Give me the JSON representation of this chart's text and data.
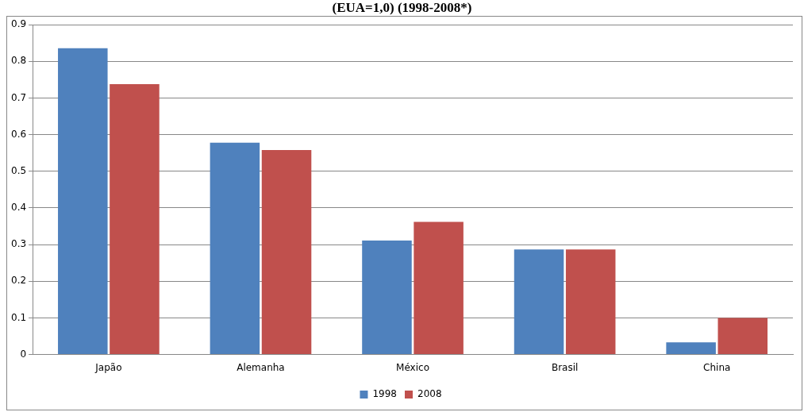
{
  "chart_data": {
    "type": "bar",
    "title": "(EUA=1,0) (1998-2008*)",
    "categories": [
      "Japão",
      "Alemanha",
      "México",
      "Brasil",
      "China"
    ],
    "series": [
      {
        "name": "1998",
        "color": "#4f81bd",
        "values": [
          0.836,
          0.578,
          0.311,
          0.287,
          0.033
        ]
      },
      {
        "name": "2008",
        "color": "#c0504d",
        "values": [
          0.738,
          0.558,
          0.362,
          0.287,
          0.1
        ]
      }
    ],
    "ylim": [
      0,
      0.9
    ],
    "yticks": [
      0,
      0.1,
      0.2,
      0.3,
      0.4,
      0.5,
      0.6,
      0.7,
      0.8,
      0.9
    ],
    "grid": "y",
    "legend": "bottom"
  }
}
